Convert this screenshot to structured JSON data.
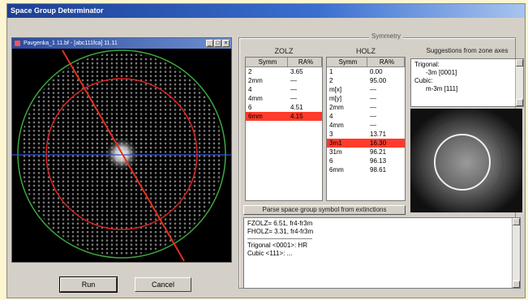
{
  "window": {
    "title": "Space Group Determinator"
  },
  "subwindow": {
    "title": "Pavgenka_1 11.bf - [abc111fca] 11.11"
  },
  "buttons": {
    "run_label": "Run",
    "cancel_label": "Cancel"
  },
  "group": {
    "legend": "Symmetry"
  },
  "zolz": {
    "title": "ZOLZ",
    "headers": [
      "Symm",
      "RA%"
    ],
    "rows": [
      {
        "symm": "2",
        "ra": "3.65",
        "selected": false
      },
      {
        "symm": "2mm",
        "ra": "—",
        "selected": false
      },
      {
        "symm": "4",
        "ra": "—",
        "selected": false
      },
      {
        "symm": "4mm",
        "ra": "—",
        "selected": false
      },
      {
        "symm": "6",
        "ra": "4.51",
        "selected": false
      },
      {
        "symm": "6mm",
        "ra": "4.15",
        "selected": true
      }
    ]
  },
  "holz": {
    "title": "HOLZ",
    "headers": [
      "Symm",
      "RA%"
    ],
    "rows": [
      {
        "symm": "1",
        "ra": "0.00",
        "selected": false
      },
      {
        "symm": "2",
        "ra": "95.00",
        "selected": false
      },
      {
        "symm": "m[x]",
        "ra": "—",
        "selected": false
      },
      {
        "symm": "m[y]",
        "ra": "—",
        "selected": false
      },
      {
        "symm": "2mm",
        "ra": "—",
        "selected": false
      },
      {
        "symm": "4",
        "ra": "—",
        "selected": false
      },
      {
        "symm": "4mm",
        "ra": "—",
        "selected": false
      },
      {
        "symm": "3",
        "ra": "13.71",
        "selected": false
      },
      {
        "symm": "3m1",
        "ra": "16.30",
        "selected": true
      },
      {
        "symm": "31m",
        "ra": "96.21",
        "selected": false
      },
      {
        "symm": "6",
        "ra": "96.13",
        "selected": false
      },
      {
        "symm": "6mm",
        "ra": "98.61",
        "selected": false
      }
    ]
  },
  "suggestions": {
    "title": "Suggestions from zone axes",
    "lines": [
      "Trigonal:",
      "-3m [0001]",
      "Cubic:",
      "m-3m [111]"
    ]
  },
  "parse_button": "Parse space group symbol from extinctions",
  "output": {
    "lines": [
      "FZOLZ= 6.51, fr4-fr3m",
      "FHOLZ= 3.31, fr4-fr3m",
      "",
      "Trigonal <0001>: HR",
      "Cubic <111>: ..."
    ]
  }
}
